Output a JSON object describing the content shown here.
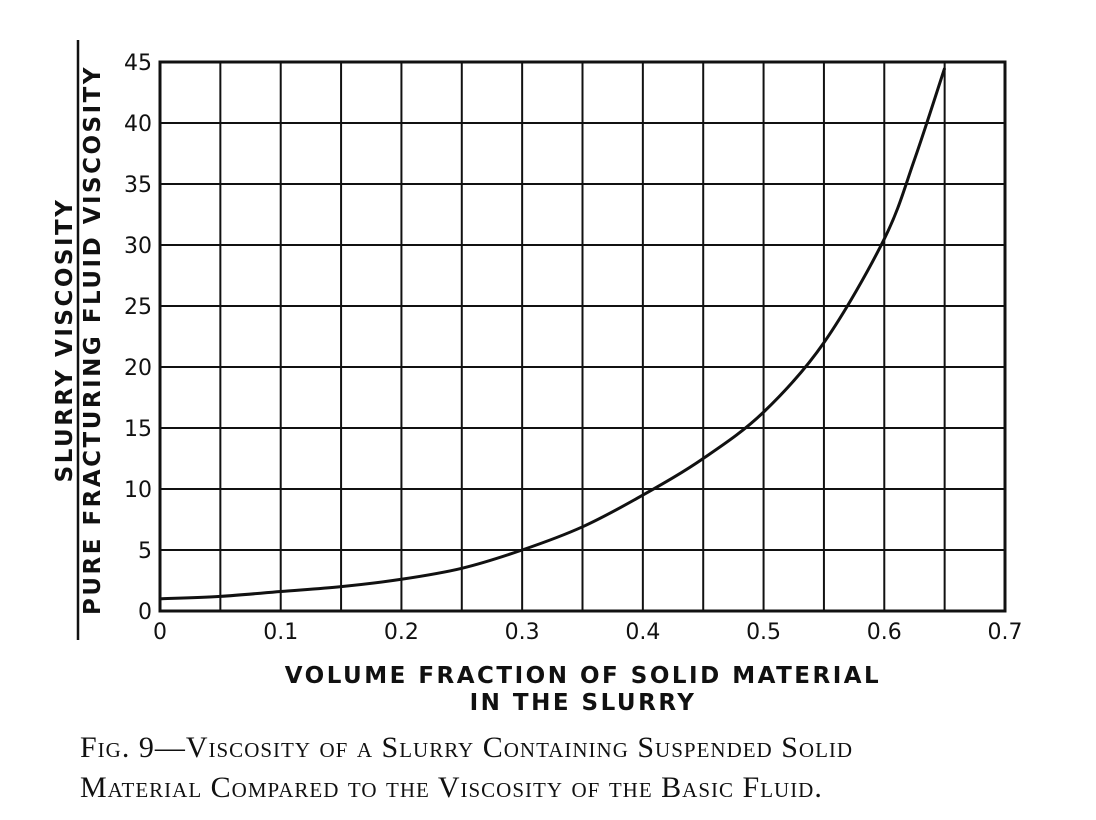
{
  "chart_data": {
    "type": "line",
    "xlabel_lines": [
      "VOLUME FRACTION OF SOLID MATERIAL",
      "IN THE SLURRY"
    ],
    "ylabel_numerator": "SLURRY VISCOSITY",
    "ylabel_denominator": "PURE FRACTURING FLUID VISCOSITY",
    "xlim": [
      0,
      0.7
    ],
    "ylim": [
      0,
      45
    ],
    "xticks": [
      0,
      0.1,
      0.2,
      0.3,
      0.4,
      0.5,
      0.6,
      0.7
    ],
    "xtick_labels": [
      "0",
      "0.1",
      "0.2",
      "0.3",
      "0.4",
      "0.5",
      "0.6",
      "0.7"
    ],
    "yticks": [
      0,
      5,
      10,
      15,
      20,
      25,
      30,
      35,
      40,
      45
    ],
    "ytick_labels": [
      "0",
      "5",
      "10",
      "15",
      "20",
      "25",
      "30",
      "35",
      "40",
      "45"
    ],
    "x_minor_step": 0.05,
    "grid": true,
    "series": [
      {
        "x": [
          0,
          0.05,
          0.1,
          0.15,
          0.2,
          0.25,
          0.3,
          0.35,
          0.4,
          0.45,
          0.5,
          0.55,
          0.6,
          0.625,
          0.65
        ],
        "y": [
          1.0,
          1.2,
          1.6,
          2.0,
          2.6,
          3.5,
          5.0,
          6.9,
          9.5,
          12.5,
          16.3,
          22.0,
          30.5,
          37.0,
          44.5
        ]
      }
    ]
  },
  "caption": {
    "line1": "Fig. 9—Viscosity of a Slurry Containing Suspended Solid",
    "line2": "Material Compared to the Viscosity of the Basic Fluid."
  }
}
